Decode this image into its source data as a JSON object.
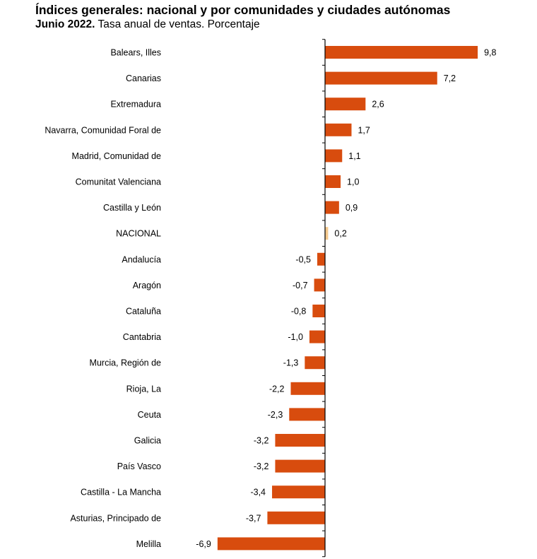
{
  "chart_data": {
    "type": "bar",
    "orientation": "horizontal",
    "title": "Índices generales: nacional y por comunidades y ciudades autónomas",
    "subtitle_bold": "Junio 2022.",
    "subtitle": "Tasa anual de ventas. Porcentaje",
    "categories": [
      "Balears, Illes",
      "Canarias",
      "Extremadura",
      "Navarra, Comunidad Foral de",
      "Madrid, Comunidad de",
      "Comunitat Valenciana",
      "Castilla y León",
      "NACIONAL",
      "Andalucía",
      "Aragón",
      "Cataluña",
      "Cantabria",
      "Murcia, Región de",
      "Rioja, La",
      "Ceuta",
      "Galicia",
      "País Vasco",
      "Castilla - La Mancha",
      "Asturias, Principado de",
      "Melilla"
    ],
    "values": [
      9.8,
      7.2,
      2.6,
      1.7,
      1.1,
      1.0,
      0.9,
      0.2,
      -0.5,
      -0.7,
      -0.8,
      -1.0,
      -1.3,
      -2.2,
      -2.3,
      -3.2,
      -3.2,
      -3.4,
      -3.7,
      -6.9
    ],
    "value_labels": [
      "9,8",
      "7,2",
      "2,6",
      "1,7",
      "1,1",
      "1,0",
      "0,9",
      "0,2",
      "-0,5",
      "-0,7",
      "-0,8",
      "-1,0",
      "-1,3",
      "-2,2",
      "-2,3",
      "-3,2",
      "-3,2",
      "-3,4",
      "-3,7",
      "-6,9"
    ],
    "highlight_category": "NACIONAL",
    "colors": {
      "bar": "#D84C0E",
      "highlight": "#F5C98C",
      "axis": "#000000"
    },
    "grid": false,
    "legend": "none"
  }
}
